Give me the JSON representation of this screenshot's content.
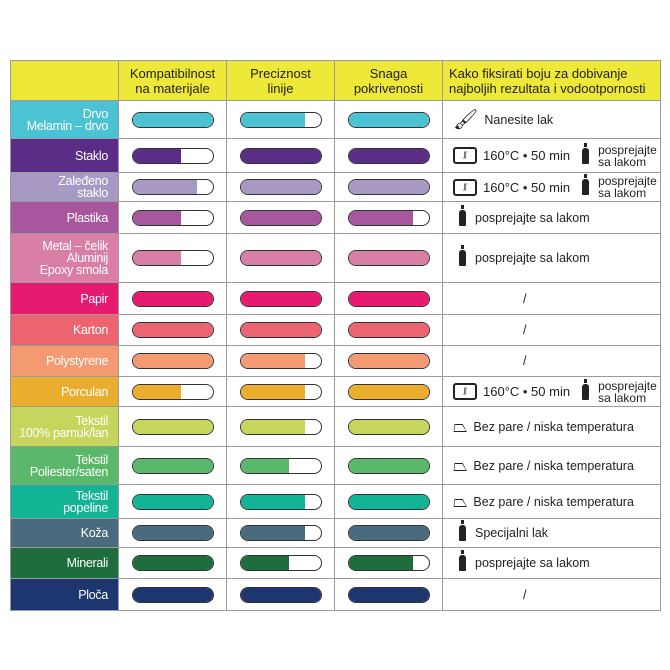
{
  "header": {
    "col1": "Kompatibilnost\nna materijale",
    "col2": "Preciznost\nlinije",
    "col3": "Snaga\npokrivenosti",
    "col4": "Kako fiksirati boju za dobivanje\nnajboljih rezultata i vodootpornosti"
  },
  "rows": [
    {
      "label": "Drvo\nMelamin – drvo",
      "color": "#4cc3d4",
      "levels": [
        1,
        0.8,
        1
      ],
      "fix": {
        "type": "brush",
        "text": "Nanesite lak"
      }
    },
    {
      "label": "Staklo",
      "color": "#5a2d87",
      "levels": [
        0.6,
        1,
        1
      ],
      "fix": {
        "type": "oven",
        "text": "160°C • 50 min",
        "spray": "posprejajte\nsa lakom"
      }
    },
    {
      "label": "Zaleđeno\nstaklo",
      "color": "#a898c4",
      "levels": [
        0.8,
        1,
        1
      ],
      "fix": {
        "type": "oven",
        "text": "160°C • 50 min",
        "spray": "posprejajte\nsa lakom"
      }
    },
    {
      "label": "Plastika",
      "color": "#a8579f",
      "levels": [
        0.6,
        1,
        0.8
      ],
      "fix": {
        "type": "spray",
        "text": "posprejajte sa lakom"
      }
    },
    {
      "label": "Metal – čelik\nAluminij\nEpoxy smola",
      "color": "#d97ea5",
      "levels": [
        0.6,
        1,
        1
      ],
      "fix": {
        "type": "spray",
        "text": "posprejajte sa lakom"
      }
    },
    {
      "label": "Papir",
      "color": "#e61a6e",
      "levels": [
        1,
        1,
        1
      ],
      "fix": {
        "type": "none",
        "text": "/"
      }
    },
    {
      "label": "Karton",
      "color": "#ec6470",
      "levels": [
        1,
        1,
        1
      ],
      "fix": {
        "type": "none",
        "text": "/"
      }
    },
    {
      "label": "Polystyrene",
      "color": "#f49a73",
      "levels": [
        1,
        0.8,
        1
      ],
      "fix": {
        "type": "none",
        "text": "/"
      }
    },
    {
      "label": "Porculan",
      "color": "#ebad2d",
      "levels": [
        0.6,
        0.8,
        1
      ],
      "fix": {
        "type": "oven",
        "text": "160°C • 50 min",
        "spray": "posprejajte\nsa lakom"
      }
    },
    {
      "label": "Tekstil\n100% pamuk/lan",
      "color": "#c7d55c",
      "levels": [
        1,
        0.8,
        1
      ],
      "fix": {
        "type": "iron",
        "text": "Bez pare / niska temperatura"
      }
    },
    {
      "label": "Tekstil\nPoliester/saten",
      "color": "#59b86a",
      "levels": [
        1,
        0.6,
        1
      ],
      "fix": {
        "type": "iron",
        "text": "Bez pare / niska temperatura"
      }
    },
    {
      "label": "Tekstil\npopeline",
      "color": "#13b396",
      "levels": [
        1,
        0.8,
        1
      ],
      "fix": {
        "type": "iron",
        "text": "Bez pare / niska temperatura"
      }
    },
    {
      "label": "Koža",
      "color": "#4a6a7d",
      "levels": [
        1,
        0.8,
        1
      ],
      "fix": {
        "type": "spray",
        "text": "Specijalni lak"
      }
    },
    {
      "label": "Minerali",
      "color": "#1e6d3c",
      "levels": [
        1,
        0.6,
        0.8
      ],
      "fix": {
        "type": "spray",
        "text": "posprejajte sa lakom"
      }
    },
    {
      "label": "Ploča",
      "color": "#1d3670",
      "levels": [
        1,
        1,
        1
      ],
      "fix": {
        "type": "none",
        "text": "/"
      }
    }
  ]
}
